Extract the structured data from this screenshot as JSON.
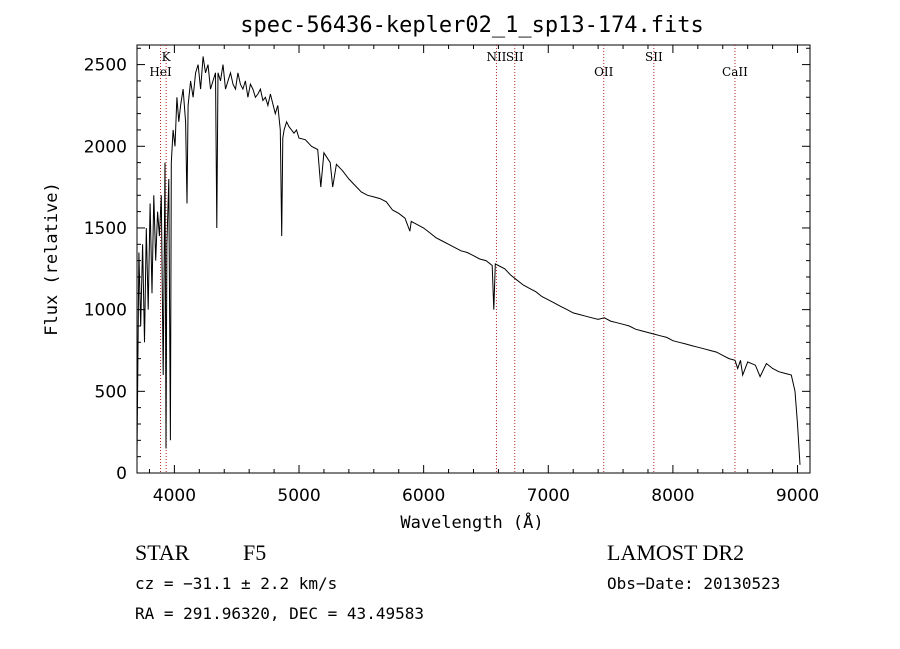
{
  "chart_data": {
    "type": "line",
    "title": "spec-56436-kepler02_1_sp13-174.fits",
    "xlabel": "Wavelength (Å)",
    "ylabel": "Flux (relative)",
    "xlim": [
      3700,
      9100
    ],
    "ylim": [
      0,
      2620
    ],
    "xticks": [
      4000,
      5000,
      6000,
      7000,
      8000,
      9000
    ],
    "yticks": [
      0,
      500,
      1000,
      1500,
      2000,
      2500
    ],
    "grid": false,
    "series": [
      {
        "x": [
          3700,
          3715,
          3730,
          3745,
          3760,
          3775,
          3790,
          3805,
          3820,
          3835,
          3850,
          3865,
          3880,
          3895,
          3910,
          3925,
          3933,
          3940,
          3955,
          3968,
          3975,
          3990,
          4005,
          4020,
          4035,
          4050,
          4070,
          4090,
          4101,
          4110,
          4130,
          4150,
          4170,
          4190,
          4210,
          4230,
          4250,
          4270,
          4290,
          4310,
          4330,
          4340,
          4350,
          4370,
          4390,
          4410,
          4430,
          4450,
          4470,
          4490,
          4510,
          4530,
          4550,
          4570,
          4590,
          4610,
          4630,
          4650,
          4670,
          4690,
          4710,
          4730,
          4750,
          4770,
          4790,
          4810,
          4830,
          4850,
          4861,
          4870,
          4880,
          4900,
          4920,
          4940,
          4960,
          4980,
          5000,
          5050,
          5100,
          5150,
          5175,
          5200,
          5250,
          5270,
          5300,
          5350,
          5400,
          5450,
          5500,
          5550,
          5600,
          5650,
          5700,
          5750,
          5800,
          5850,
          5890,
          5900,
          5950,
          6000,
          6050,
          6100,
          6150,
          6200,
          6250,
          6300,
          6350,
          6400,
          6450,
          6500,
          6550,
          6563,
          6575,
          6600,
          6650,
          6700,
          6750,
          6800,
          6850,
          6900,
          6950,
          7000,
          7050,
          7100,
          7150,
          7200,
          7250,
          7300,
          7350,
          7400,
          7450,
          7500,
          7550,
          7600,
          7650,
          7700,
          7750,
          7800,
          7850,
          7900,
          7950,
          8000,
          8050,
          8100,
          8150,
          8200,
          8250,
          8300,
          8350,
          8400,
          8450,
          8498,
          8520,
          8542,
          8560,
          8600,
          8662,
          8700,
          8750,
          8800,
          8850,
          8900,
          8950,
          8980,
          9000,
          9020
        ],
        "values": [
          100,
          1350,
          900,
          1400,
          800,
          1500,
          1000,
          1650,
          1100,
          1700,
          1300,
          1600,
          1450,
          1700,
          600,
          1900,
          150,
          1400,
          1800,
          200,
          1900,
          2100,
          2000,
          2300,
          2150,
          2250,
          2350,
          2150,
          1650,
          2250,
          2400,
          2300,
          2450,
          2500,
          2350,
          2550,
          2450,
          2500,
          2350,
          2400,
          2450,
          1500,
          2450,
          2400,
          2500,
          2350,
          2400,
          2450,
          2380,
          2350,
          2450,
          2380,
          2350,
          2400,
          2300,
          2380,
          2350,
          2300,
          2320,
          2350,
          2280,
          2300,
          2250,
          2320,
          2260,
          2200,
          2250,
          2100,
          1450,
          2050,
          2100,
          2150,
          2120,
          2100,
          2080,
          2100,
          2050,
          2040,
          2000,
          1980,
          1750,
          1960,
          1900,
          1750,
          1890,
          1850,
          1800,
          1760,
          1720,
          1700,
          1690,
          1680,
          1660,
          1610,
          1590,
          1560,
          1480,
          1540,
          1520,
          1500,
          1470,
          1440,
          1420,
          1400,
          1380,
          1360,
          1350,
          1330,
          1310,
          1300,
          1270,
          1000,
          1280,
          1270,
          1250,
          1210,
          1180,
          1150,
          1130,
          1110,
          1080,
          1060,
          1040,
          1020,
          1000,
          980,
          970,
          960,
          950,
          940,
          950,
          930,
          920,
          910,
          900,
          880,
          870,
          860,
          850,
          840,
          830,
          810,
          800,
          790,
          780,
          770,
          760,
          750,
          740,
          720,
          700,
          690,
          640,
          690,
          600,
          680,
          660,
          590,
          670,
          640,
          620,
          610,
          600,
          500,
          300,
          50
        ]
      }
    ],
    "reference_lines": [
      {
        "label": "K",
        "x": 3934
      },
      {
        "label": "HeI",
        "x": 3889
      },
      {
        "label": "NII",
        "x": 6584
      },
      {
        "label": "SII",
        "x": 6731
      },
      {
        "label": "OII",
        "x": 7445
      },
      {
        "label": "SII",
        "x": 7847
      },
      {
        "label": "CaII",
        "x": 8498
      }
    ]
  },
  "info": {
    "object_type": "STAR",
    "subclass": "F5",
    "survey": "LAMOST DR2",
    "cz": "cz = −31.1 ± 2.2 km/s",
    "obs_date": "Obs−Date: 20130523",
    "coords": "RA = 291.96320, DEC =  43.49583"
  },
  "colors": {
    "spectrum": "#000000",
    "reference_line": "#b22222"
  }
}
